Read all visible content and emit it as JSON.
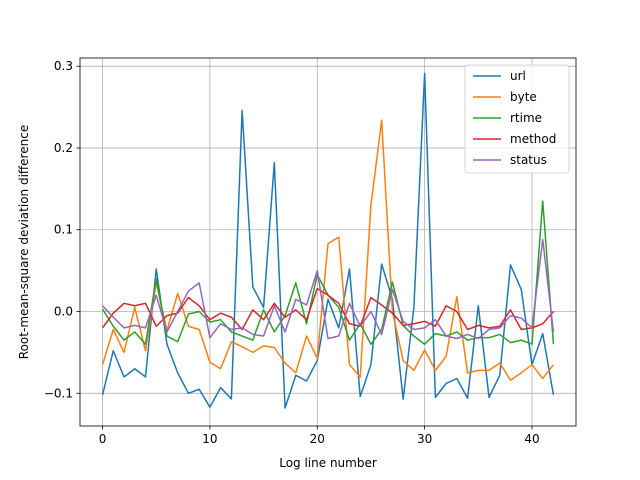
{
  "chart_data": {
    "type": "line",
    "title": "",
    "xlabel": "Log line number",
    "ylabel": "Root-mean-square deviation difference",
    "xlim": [
      -2.1,
      44.1
    ],
    "ylim": [
      -0.14,
      0.31
    ],
    "xticks": [
      0,
      10,
      20,
      30,
      40
    ],
    "yticks": [
      -0.1,
      0.0,
      0.1,
      0.2,
      0.3
    ],
    "xtick_labels": [
      "0",
      "10",
      "20",
      "30",
      "40"
    ],
    "ytick_labels": [
      "−0.1",
      "0.0",
      "0.1",
      "0.2",
      "0.3"
    ],
    "grid": true,
    "legend_position": "top-right",
    "x": [
      0,
      1,
      2,
      3,
      4,
      5,
      6,
      7,
      8,
      9,
      10,
      11,
      12,
      13,
      14,
      15,
      16,
      17,
      18,
      19,
      20,
      21,
      22,
      23,
      24,
      25,
      26,
      27,
      28,
      29,
      30,
      31,
      32,
      33,
      34,
      35,
      36,
      37,
      38,
      39,
      40,
      41,
      42
    ],
    "series": [
      {
        "name": "url",
        "color": "#1f77b4",
        "values": [
          -0.102,
          -0.048,
          -0.08,
          -0.07,
          -0.08,
          0.052,
          -0.04,
          -0.075,
          -0.1,
          -0.095,
          -0.117,
          -0.093,
          -0.107,
          0.246,
          0.03,
          0.005,
          0.182,
          -0.118,
          -0.078,
          -0.085,
          -0.06,
          0.015,
          -0.02,
          0.052,
          -0.104,
          -0.065,
          0.058,
          0.015,
          -0.107,
          0.005,
          0.291,
          -0.105,
          -0.088,
          -0.082,
          -0.106,
          0.007,
          -0.105,
          -0.078,
          0.057,
          0.027,
          -0.065,
          -0.027,
          -0.102
        ]
      },
      {
        "name": "byte",
        "color": "#ff7f0e",
        "values": [
          -0.065,
          -0.022,
          -0.05,
          0.005,
          -0.048,
          0.035,
          -0.023,
          0.022,
          -0.018,
          -0.022,
          -0.062,
          -0.07,
          -0.037,
          -0.043,
          -0.05,
          -0.042,
          -0.044,
          -0.063,
          -0.075,
          -0.03,
          -0.057,
          0.083,
          0.091,
          -0.065,
          -0.08,
          0.13,
          0.234,
          0.0,
          -0.06,
          -0.072,
          -0.047,
          -0.072,
          -0.055,
          0.018,
          -0.075,
          -0.072,
          -0.072,
          -0.063,
          -0.084,
          -0.075,
          -0.065,
          -0.082,
          -0.065
        ]
      },
      {
        "name": "rtime",
        "color": "#2ca02c",
        "values": [
          0.003,
          -0.018,
          -0.035,
          -0.025,
          -0.04,
          0.04,
          -0.03,
          -0.037,
          -0.003,
          0.0,
          -0.013,
          -0.01,
          -0.025,
          -0.03,
          -0.035,
          0.002,
          -0.025,
          -0.005,
          0.035,
          -0.015,
          0.045,
          0.02,
          0.005,
          -0.035,
          -0.015,
          -0.04,
          -0.022,
          0.036,
          -0.017,
          -0.03,
          -0.04,
          -0.027,
          -0.03,
          -0.025,
          -0.035,
          -0.032,
          -0.032,
          -0.028,
          -0.038,
          -0.035,
          -0.04,
          0.135,
          -0.04
        ]
      },
      {
        "name": "method",
        "color": "#d62728",
        "values": [
          -0.02,
          -0.002,
          0.01,
          0.007,
          0.01,
          -0.018,
          -0.005,
          -0.002,
          0.017,
          0.007,
          -0.01,
          -0.002,
          -0.007,
          -0.022,
          0.002,
          -0.01,
          0.01,
          -0.007,
          0.002,
          -0.01,
          0.028,
          0.02,
          0.01,
          -0.015,
          -0.018,
          0.017,
          0.008,
          -0.002,
          -0.017,
          -0.015,
          -0.012,
          -0.018,
          0.007,
          0.0,
          -0.022,
          -0.017,
          -0.02,
          -0.018,
          0.002,
          -0.022,
          -0.02,
          -0.015,
          0.0
        ]
      },
      {
        "name": "status",
        "color": "#9467bd",
        "values": [
          0.007,
          -0.007,
          -0.02,
          -0.017,
          -0.02,
          0.02,
          -0.025,
          0.0,
          0.025,
          0.035,
          -0.032,
          -0.015,
          -0.022,
          -0.02,
          -0.028,
          -0.03,
          0.007,
          -0.025,
          0.015,
          0.008,
          0.05,
          -0.033,
          -0.03,
          0.01,
          -0.018,
          0.0,
          -0.028,
          0.027,
          -0.012,
          -0.022,
          -0.02,
          -0.01,
          -0.03,
          -0.033,
          -0.028,
          -0.033,
          -0.022,
          -0.02,
          -0.005,
          -0.008,
          -0.02,
          0.088,
          -0.025
        ]
      }
    ]
  }
}
